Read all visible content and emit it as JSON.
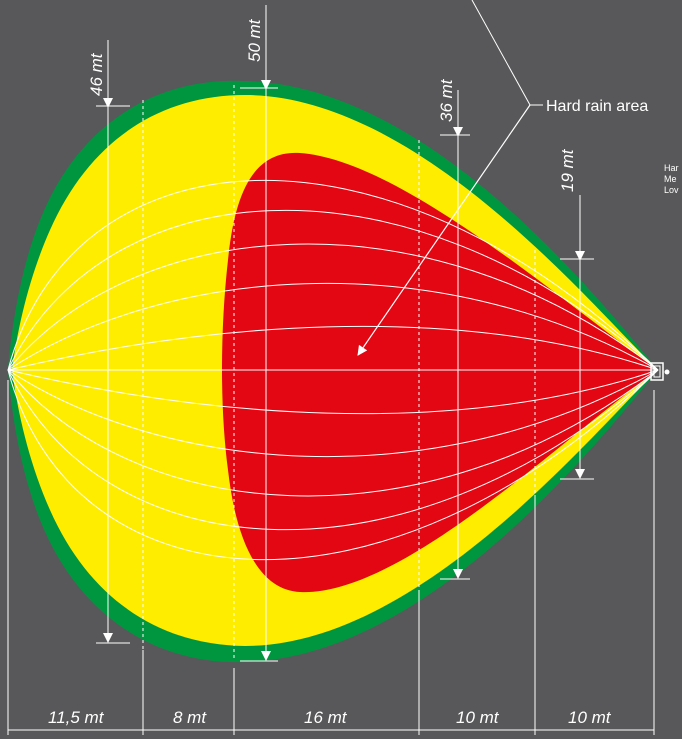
{
  "colors": {
    "background": "#58585a",
    "low": "#009640",
    "medium": "#ffed00",
    "hard": "#e30613",
    "lines": "#ffffff"
  },
  "callout": {
    "label": "Hard rain area"
  },
  "legend": {
    "items": [
      "Har",
      "Me",
      "Lov"
    ]
  },
  "widths": [
    {
      "id": "w46",
      "label": "46 mt"
    },
    {
      "id": "w50",
      "label": "50 mt"
    },
    {
      "id": "w36",
      "label": "36 mt"
    },
    {
      "id": "w19",
      "label": "19 mt"
    }
  ],
  "lengths": [
    {
      "id": "l1",
      "label": "11,5 mt"
    },
    {
      "id": "l2",
      "label": "8 mt"
    },
    {
      "id": "l3",
      "label": "16 mt"
    },
    {
      "id": "l4",
      "label": "10 mt"
    },
    {
      "id": "l5",
      "label": "10 mt"
    }
  ]
}
